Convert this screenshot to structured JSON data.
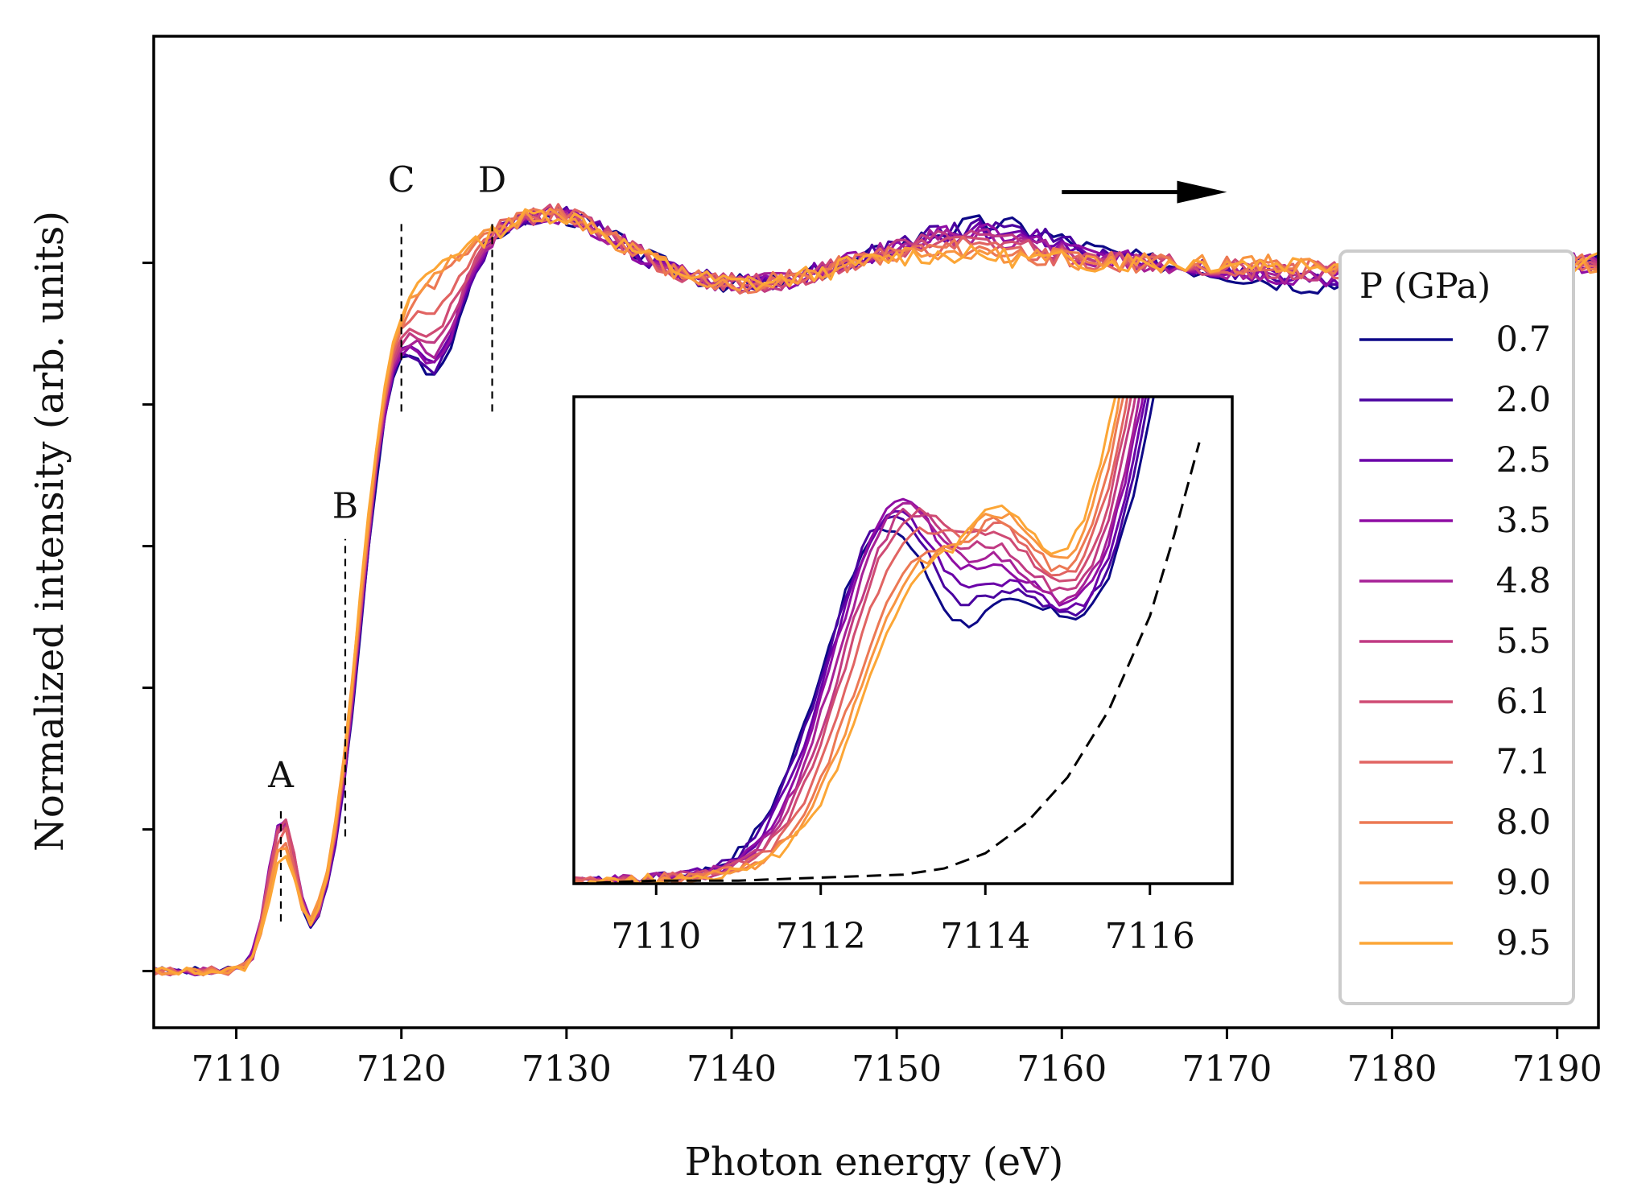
{
  "chart_data": {
    "type": "line",
    "main": {
      "xlabel": "Photon energy (eV)",
      "ylabel": "Normalized intensity (arb. units)",
      "xlim": [
        7105,
        7192.5
      ],
      "ylim": [
        -0.08,
        1.32
      ],
      "xticks": [
        7110,
        7120,
        7130,
        7140,
        7150,
        7160,
        7170,
        7180,
        7190
      ],
      "xtick_labels": [
        "7110",
        "7120",
        "7130",
        "7140",
        "7150",
        "7160",
        "7170",
        "7180",
        "7190"
      ],
      "yticks": [
        0,
        0.2,
        0.4,
        0.6,
        0.8,
        1.0
      ],
      "ytick_labels_shown": false,
      "grid": false,
      "annotations": [
        {
          "label": "A",
          "x": 7112.7,
          "y_from": 0.07,
          "y_to": 0.23,
          "label_y": 0.26
        },
        {
          "label": "B",
          "x": 7116.6,
          "y_from": 0.19,
          "y_to": 0.61,
          "label_y": 0.64
        },
        {
          "label": "C",
          "x": 7120.0,
          "y_from": 0.79,
          "y_to": 1.06,
          "label_y": 1.1
        },
        {
          "label": "D",
          "x": 7125.5,
          "y_from": 0.79,
          "y_to": 1.06,
          "label_y": 1.1
        }
      ],
      "arrow": {
        "x_from": 7160,
        "x_to": 7170,
        "y": 1.1,
        "direction": "right",
        "meaning": "increasing pressure"
      }
    },
    "inset": {
      "xlim": [
        7109,
        7117
      ],
      "ylim": [
        0.04,
        0.2
      ],
      "xticks": [
        7110,
        7112,
        7114,
        7116
      ],
      "xtick_labels": [
        "7110",
        "7112",
        "7114",
        "7116"
      ],
      "baseline_dashed": true,
      "baseline": {
        "x": [
          7109.0,
          7110.0,
          7111.0,
          7112.0,
          7113.0,
          7113.5,
          7114.0,
          7114.5,
          7115.0,
          7115.5,
          7116.0,
          7116.3,
          7116.6
        ],
        "y": [
          0.04,
          0.041,
          0.041,
          0.042,
          0.043,
          0.045,
          0.05,
          0.06,
          0.075,
          0.097,
          0.128,
          0.155,
          0.185
        ]
      }
    },
    "legend": {
      "title": "P (GPa)",
      "placement": "right"
    },
    "series": [
      {
        "name": "0.7",
        "color": "#0d0887",
        "A_height": 0.2,
        "C_amp": 0.145,
        "A_inset": 0.152,
        "dip_inset": 0.126
      },
      {
        "name": "2.0",
        "color": "#4a02a0",
        "A_height": 0.205,
        "C_amp": 0.14,
        "A_inset": 0.156,
        "dip_inset": 0.127
      },
      {
        "name": "2.5",
        "color": "#6a00a8",
        "A_height": 0.205,
        "C_amp": 0.135,
        "A_inset": 0.157,
        "dip_inset": 0.127
      },
      {
        "name": "3.5",
        "color": "#8f0da4",
        "A_height": 0.21,
        "C_amp": 0.13,
        "A_inset": 0.16,
        "dip_inset": 0.128
      },
      {
        "name": "4.8",
        "color": "#a72197",
        "A_height": 0.205,
        "C_amp": 0.12,
        "A_inset": 0.158,
        "dip_inset": 0.128
      },
      {
        "name": "5.5",
        "color": "#c03a83",
        "A_height": 0.205,
        "C_amp": 0.11,
        "A_inset": 0.156,
        "dip_inset": 0.129
      },
      {
        "name": "6.1",
        "color": "#cf4b74",
        "A_height": 0.2,
        "C_amp": 0.09,
        "A_inset": 0.155,
        "dip_inset": 0.13
      },
      {
        "name": "7.1",
        "color": "#e16462",
        "A_height": 0.19,
        "C_amp": 0.06,
        "A_inset": 0.149,
        "dip_inset": 0.131
      },
      {
        "name": "8.0",
        "color": "#ec7853",
        "A_height": 0.17,
        "C_amp": 0.02,
        "A_inset": 0.14,
        "dip_inset": 0.133
      },
      {
        "name": "9.0",
        "color": "#f89540",
        "A_height": 0.165,
        "C_amp": 0.01,
        "A_inset": 0.137,
        "dip_inset": 0.134
      },
      {
        "name": "9.5",
        "color": "#fca636",
        "A_height": 0.155,
        "C_amp": 0.0,
        "A_inset": 0.134,
        "dip_inset": 0.134
      }
    ]
  }
}
